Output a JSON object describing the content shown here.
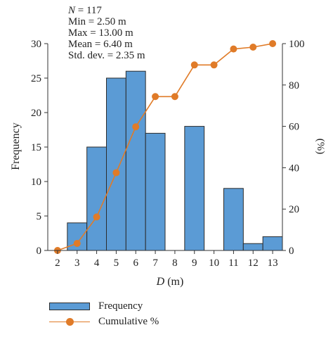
{
  "chart_data": {
    "type": "bar",
    "stats": {
      "n_label": "N",
      "n_value": " = 117",
      "min": "Min = 2.50 m",
      "max": "Max = 13.00 m",
      "mean": "Mean = 6.40 m",
      "std": "Std. dev. = 2.35 m"
    },
    "xlabel_var": "D",
    "xlabel_unit": " (m)",
    "ylabel": "Frequency",
    "y2label": "(%)",
    "x_ticks": [
      2,
      3,
      4,
      5,
      6,
      7,
      8,
      9,
      10,
      11,
      12,
      13
    ],
    "xlim": [
      2,
      13
    ],
    "ylim": [
      0,
      30
    ],
    "y_ticks": [
      0,
      5,
      10,
      15,
      20,
      25,
      30
    ],
    "y2lim": [
      0,
      100
    ],
    "y2_ticks": [
      0,
      20,
      40,
      60,
      80,
      100
    ],
    "bars": [
      {
        "x": 3,
        "value": 4
      },
      {
        "x": 4,
        "value": 15
      },
      {
        "x": 5,
        "value": 25
      },
      {
        "x": 6,
        "value": 26
      },
      {
        "x": 7,
        "value": 17
      },
      {
        "x": 8,
        "value": 0
      },
      {
        "x": 9,
        "value": 18
      },
      {
        "x": 10,
        "value": 0
      },
      {
        "x": 11,
        "value": 9
      },
      {
        "x": 12,
        "value": 1
      },
      {
        "x": 13,
        "value": 2
      }
    ],
    "cumulative": {
      "x": [
        2,
        3,
        4,
        5,
        6,
        7,
        8,
        9,
        10,
        11,
        12,
        13
      ],
      "values": [
        0,
        3.4,
        16.2,
        37.6,
        59.8,
        74.4,
        74.4,
        89.7,
        89.7,
        97.4,
        98.3,
        100
      ]
    },
    "legend": {
      "bar_label": "Frequency",
      "line_label": "Cumulative %",
      "placement": "bottom-left"
    },
    "colors": {
      "bar_fill": "#5b9bd5",
      "bar_stroke": "#2c2c2c",
      "line": "#e07b28"
    },
    "grid": false
  }
}
